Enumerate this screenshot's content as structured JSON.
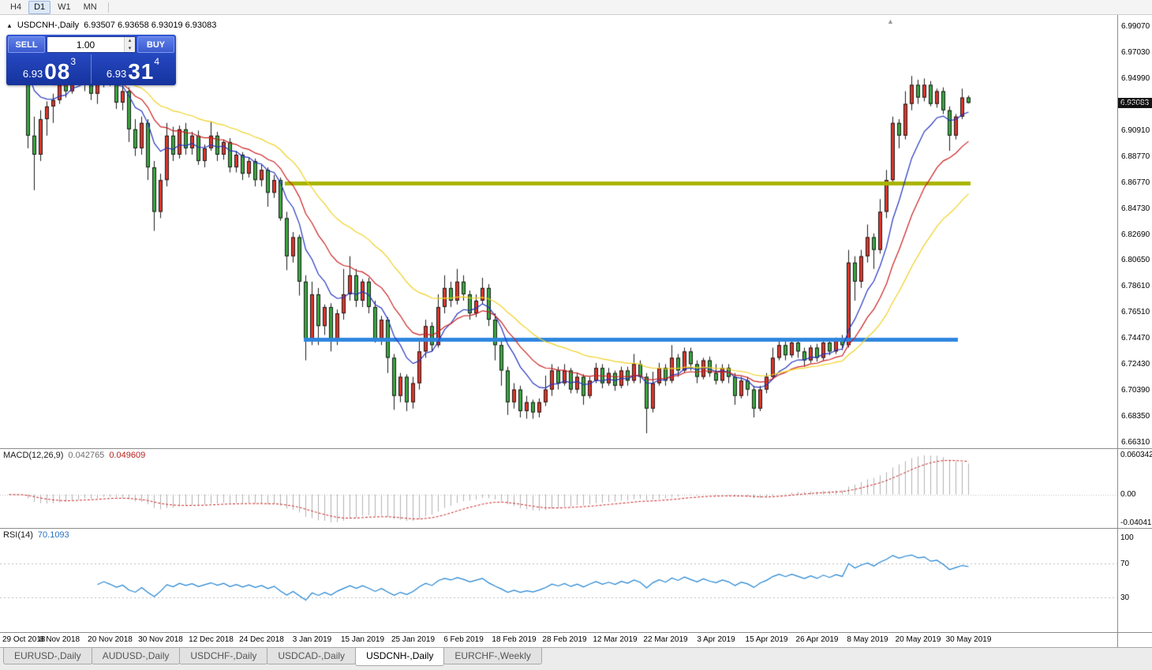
{
  "toolbar": {
    "buttons": [
      {
        "label": "H4",
        "active": false
      },
      {
        "label": "D1",
        "active": true
      },
      {
        "label": "W1",
        "active": false
      },
      {
        "label": "MN",
        "active": false
      }
    ]
  },
  "chart_header": {
    "collapse_icon": "▲",
    "symbol": "USDCNH-,Daily",
    "ohlc": "6.93507 6.93658 6.93019 6.93083"
  },
  "trade_panel": {
    "sell_label": "SELL",
    "buy_label": "BUY",
    "volume": "1.00",
    "spin_up": "▴",
    "spin_down": "▾",
    "sell_price_small": "6.93",
    "sell_price_big": "08",
    "sell_price_sup": "3",
    "buy_price_small": "6.93",
    "buy_price_big": "31",
    "buy_price_sup": "4"
  },
  "shift_marker_icon": "▲",
  "price_axis": {
    "ticks": [
      "6.99070",
      "6.97030",
      "6.94990",
      "6.92950",
      "6.90910",
      "6.88770",
      "6.86770",
      "6.84730",
      "6.82690",
      "6.80650",
      "6.78610",
      "6.76510",
      "6.74470",
      "6.72430",
      "6.70390",
      "6.68350",
      "6.66310"
    ],
    "current_price": "6.93083"
  },
  "date_axis": {
    "labels": [
      "29 Oct 2018",
      "8 Nov 2018",
      "20 Nov 2018",
      "30 Nov 2018",
      "12 Dec 2018",
      "24 Dec 2018",
      "3 Jan 2019",
      "15 Jan 2019",
      "25 Jan 2019",
      "6 Feb 2019",
      "18 Feb 2019",
      "28 Feb 2019",
      "12 Mar 2019",
      "22 Mar 2019",
      "3 Apr 2019",
      "15 Apr 2019",
      "26 Apr 2019",
      "8 May 2019",
      "20 May 2019",
      "30 May 2019"
    ],
    "indices": [
      0,
      8,
      16,
      24,
      32,
      40,
      48,
      56,
      64,
      72,
      80,
      88,
      96,
      104,
      112,
      120,
      128,
      136,
      144,
      152
    ]
  },
  "indicators": {
    "macd": {
      "label": "MACD(12,26,9)",
      "value_main": "0.042765",
      "value_signal": "0.049609",
      "scale": [
        "0.060342",
        "0.00",
        "-0.040415"
      ],
      "histogram_color": "#b0b0b0",
      "signal_color": "#cc2222"
    },
    "rsi": {
      "label": "RSI(14)",
      "value": "70.1093",
      "scale": [
        "100",
        "70",
        "30"
      ],
      "levels": [
        70,
        30
      ],
      "line_color": "#1e82d2"
    }
  },
  "bottom_tabs": {
    "items": [
      {
        "label": "EURUSD-,Daily",
        "active": false
      },
      {
        "label": "AUDUSD-,Daily",
        "active": false
      },
      {
        "label": "USDCHF-,Daily",
        "active": false
      },
      {
        "label": "USDCAD-,Daily",
        "active": false
      },
      {
        "label": "USDCNH-,Daily",
        "active": true
      },
      {
        "label": "EURCHF-,Weekly",
        "active": false
      }
    ]
  },
  "chart_data": {
    "type": "candlestick",
    "title": "USDCNH-,Daily",
    "ylim": [
      6.6631,
      6.9907
    ],
    "colors": {
      "bull": "#e0352b",
      "bear": "#3aa83f",
      "wick": "#1a1a1a"
    },
    "moving_averages": [
      {
        "period": 8,
        "color": "#2434c0"
      },
      {
        "period": 16,
        "color": "#cc2020"
      },
      {
        "period": 30,
        "color": "#f0d020"
      }
    ],
    "hlines": [
      {
        "price": 6.8677,
        "color": "#a8b400",
        "width": 5,
        "from": 44,
        "to": 152
      },
      {
        "price": 6.7447,
        "color": "#2e86e0",
        "width": 5,
        "from": 47,
        "to": 150
      }
    ],
    "candles": [
      [
        6.95,
        6.976,
        6.945,
        6.97
      ],
      [
        6.97,
        6.975,
        6.955,
        6.96
      ],
      [
        6.96,
        6.977,
        6.956,
        6.973
      ],
      [
        6.973,
        6.974,
        6.895,
        6.905
      ],
      [
        6.905,
        6.92,
        6.862,
        6.89
      ],
      [
        6.89,
        6.925,
        6.885,
        6.918
      ],
      [
        6.918,
        6.932,
        6.905,
        6.928
      ],
      [
        6.928,
        6.938,
        6.915,
        6.933
      ],
      [
        6.933,
        6.95,
        6.93,
        6.945
      ],
      [
        6.945,
        6.956,
        6.935,
        6.94
      ],
      [
        6.94,
        6.964,
        6.938,
        6.96
      ],
      [
        6.96,
        6.966,
        6.945,
        6.95
      ],
      [
        6.95,
        6.962,
        6.94,
        6.956
      ],
      [
        6.956,
        6.961,
        6.933,
        6.938
      ],
      [
        6.938,
        6.952,
        6.93,
        6.948
      ],
      [
        6.948,
        6.967,
        6.943,
        6.962
      ],
      [
        6.962,
        6.965,
        6.944,
        6.948
      ],
      [
        6.948,
        6.954,
        6.926,
        6.931
      ],
      [
        6.931,
        6.945,
        6.925,
        6.94
      ],
      [
        6.94,
        6.943,
        6.9,
        6.91
      ],
      [
        6.91,
        6.918,
        6.889,
        6.895
      ],
      [
        6.895,
        6.92,
        6.89,
        6.915
      ],
      [
        6.915,
        6.918,
        6.87,
        6.88
      ],
      [
        6.88,
        6.885,
        6.83,
        6.845
      ],
      [
        6.845,
        6.875,
        6.84,
        6.87
      ],
      [
        6.87,
        6.915,
        6.865,
        6.905
      ],
      [
        6.905,
        6.912,
        6.885,
        6.89
      ],
      [
        6.89,
        6.913,
        6.887,
        6.91
      ],
      [
        6.91,
        6.915,
        6.89,
        6.895
      ],
      [
        6.895,
        6.908,
        6.89,
        6.905
      ],
      [
        6.905,
        6.909,
        6.882,
        6.885
      ],
      [
        6.885,
        6.898,
        6.88,
        6.895
      ],
      [
        6.895,
        6.916,
        6.893,
        6.905
      ],
      [
        6.905,
        6.908,
        6.885,
        6.89
      ],
      [
        6.89,
        6.902,
        6.886,
        6.9
      ],
      [
        6.9,
        6.903,
        6.876,
        6.88
      ],
      [
        6.88,
        6.893,
        6.876,
        6.89
      ],
      [
        6.89,
        6.892,
        6.87,
        6.875
      ],
      [
        6.875,
        6.888,
        6.872,
        6.885
      ],
      [
        6.885,
        6.887,
        6.865,
        6.87
      ],
      [
        6.87,
        6.882,
        6.865,
        6.878
      ],
      [
        6.878,
        6.88,
        6.849,
        6.86
      ],
      [
        6.86,
        6.874,
        6.856,
        6.87
      ],
      [
        6.87,
        6.872,
        6.838,
        6.84
      ],
      [
        6.84,
        6.845,
        6.799,
        6.81
      ],
      [
        6.81,
        6.829,
        6.805,
        6.825
      ],
      [
        6.825,
        6.827,
        6.779,
        6.79
      ],
      [
        6.79,
        6.795,
        6.728,
        6.745
      ],
      [
        6.745,
        6.79,
        6.74,
        6.78
      ],
      [
        6.78,
        6.785,
        6.74,
        6.755
      ],
      [
        6.755,
        6.772,
        6.748,
        6.77
      ],
      [
        6.77,
        6.773,
        6.735,
        6.745
      ],
      [
        6.745,
        6.768,
        6.74,
        6.765
      ],
      [
        6.765,
        6.8,
        6.76,
        6.78
      ],
      [
        6.78,
        6.81,
        6.775,
        6.795
      ],
      [
        6.795,
        6.8,
        6.77,
        6.775
      ],
      [
        6.775,
        6.792,
        6.77,
        6.79
      ],
      [
        6.79,
        6.793,
        6.765,
        6.77
      ],
      [
        6.77,
        6.775,
        6.742,
        6.745
      ],
      [
        6.745,
        6.763,
        6.74,
        6.76
      ],
      [
        6.76,
        6.762,
        6.718,
        6.73
      ],
      [
        6.73,
        6.733,
        6.689,
        6.7
      ],
      [
        6.7,
        6.718,
        6.695,
        6.715
      ],
      [
        6.715,
        6.717,
        6.688,
        6.695
      ],
      [
        6.695,
        6.715,
        6.69,
        6.71
      ],
      [
        6.71,
        6.745,
        6.705,
        6.735
      ],
      [
        6.735,
        6.76,
        6.73,
        6.755
      ],
      [
        6.755,
        6.758,
        6.735,
        6.74
      ],
      [
        6.74,
        6.78,
        6.738,
        6.77
      ],
      [
        6.77,
        6.795,
        6.765,
        6.785
      ],
      [
        6.785,
        6.79,
        6.77,
        6.775
      ],
      [
        6.775,
        6.8,
        6.772,
        6.79
      ],
      [
        6.79,
        6.795,
        6.775,
        6.78
      ],
      [
        6.78,
        6.783,
        6.76,
        6.765
      ],
      [
        6.765,
        6.78,
        6.762,
        6.775
      ],
      [
        6.775,
        6.793,
        6.772,
        6.785
      ],
      [
        6.785,
        6.788,
        6.755,
        6.76
      ],
      [
        6.76,
        6.765,
        6.728,
        6.74
      ],
      [
        6.74,
        6.745,
        6.708,
        6.72
      ],
      [
        6.72,
        6.723,
        6.685,
        6.695
      ],
      [
        6.695,
        6.71,
        6.69,
        6.705
      ],
      [
        6.705,
        6.708,
        6.683,
        6.688
      ],
      [
        6.688,
        6.7,
        6.682,
        6.695
      ],
      [
        6.695,
        6.697,
        6.682,
        6.687
      ],
      [
        6.687,
        6.698,
        6.683,
        6.695
      ],
      [
        6.695,
        6.716,
        6.692,
        6.705
      ],
      [
        6.705,
        6.725,
        6.7,
        6.72
      ],
      [
        6.72,
        6.723,
        6.705,
        6.71
      ],
      [
        6.71,
        6.725,
        6.708,
        6.72
      ],
      [
        6.72,
        6.722,
        6.702,
        6.705
      ],
      [
        6.705,
        6.718,
        6.702,
        6.715
      ],
      [
        6.715,
        6.717,
        6.693,
        6.7
      ],
      [
        6.7,
        6.715,
        6.698,
        6.712
      ],
      [
        6.712,
        6.726,
        6.71,
        6.722
      ],
      [
        6.722,
        6.725,
        6.706,
        6.71
      ],
      [
        6.71,
        6.722,
        6.708,
        6.718
      ],
      [
        6.718,
        6.72,
        6.704,
        6.708
      ],
      [
        6.708,
        6.723,
        6.706,
        6.72
      ],
      [
        6.72,
        6.723,
        6.708,
        6.712
      ],
      [
        6.712,
        6.733,
        6.71,
        6.725
      ],
      [
        6.725,
        6.728,
        6.71,
        6.715
      ],
      [
        6.715,
        6.718,
        6.6705,
        6.69
      ],
      [
        6.69,
        6.719,
        6.687,
        6.71
      ],
      [
        6.71,
        6.726,
        6.708,
        6.722
      ],
      [
        6.722,
        6.725,
        6.708,
        6.712
      ],
      [
        6.712,
        6.74,
        6.71,
        6.73
      ],
      [
        6.73,
        6.733,
        6.715,
        6.72
      ],
      [
        6.72,
        6.738,
        6.718,
        6.735
      ],
      [
        6.735,
        6.738,
        6.72,
        6.725
      ],
      [
        6.725,
        6.728,
        6.71,
        6.715
      ],
      [
        6.715,
        6.73,
        6.713,
        6.728
      ],
      [
        6.728,
        6.731,
        6.715,
        6.718
      ],
      [
        6.718,
        6.725,
        6.709,
        6.712
      ],
      [
        6.712,
        6.725,
        6.71,
        6.722
      ],
      [
        6.722,
        6.725,
        6.71,
        6.715
      ],
      [
        6.715,
        6.718,
        6.693,
        6.7
      ],
      [
        6.7,
        6.715,
        6.698,
        6.712
      ],
      [
        6.712,
        6.715,
        6.7,
        6.705
      ],
      [
        6.705,
        6.708,
        6.683,
        6.69
      ],
      [
        6.69,
        6.708,
        6.688,
        6.705
      ],
      [
        6.705,
        6.718,
        6.702,
        6.715
      ],
      [
        6.715,
        6.738,
        6.713,
        6.73
      ],
      [
        6.73,
        6.745,
        6.728,
        6.74
      ],
      [
        6.74,
        6.743,
        6.728,
        6.732
      ],
      [
        6.732,
        6.745,
        6.73,
        6.742
      ],
      [
        6.742,
        6.745,
        6.73,
        6.735
      ],
      [
        6.735,
        6.738,
        6.723,
        6.728
      ],
      [
        6.728,
        6.74,
        6.726,
        6.738
      ],
      [
        6.738,
        6.741,
        6.727,
        6.73
      ],
      [
        6.73,
        6.744,
        6.728,
        6.742
      ],
      [
        6.742,
        6.745,
        6.732,
        6.735
      ],
      [
        6.735,
        6.746,
        6.733,
        6.745
      ],
      [
        6.745,
        6.748,
        6.736,
        6.74
      ],
      [
        6.74,
        6.815,
        6.738,
        6.805
      ],
      [
        6.805,
        6.81,
        6.775,
        6.79
      ],
      [
        6.79,
        6.815,
        6.785,
        6.81
      ],
      [
        6.81,
        6.835,
        6.805,
        6.825
      ],
      [
        6.825,
        6.828,
        6.8,
        6.815
      ],
      [
        6.815,
        6.855,
        6.812,
        6.845
      ],
      [
        6.845,
        6.878,
        6.84,
        6.87
      ],
      [
        6.87,
        6.92,
        6.868,
        6.915
      ],
      [
        6.915,
        6.918,
        6.895,
        6.905
      ],
      [
        6.905,
        6.94,
        6.902,
        6.93
      ],
      [
        6.93,
        6.952,
        6.925,
        6.945
      ],
      [
        6.945,
        6.949,
        6.93,
        6.935
      ],
      [
        6.935,
        6.95,
        6.932,
        6.945
      ],
      [
        6.945,
        6.948,
        6.928,
        6.93
      ],
      [
        6.93,
        6.942,
        6.927,
        6.94
      ],
      [
        6.94,
        6.943,
        6.922,
        6.925
      ],
      [
        6.925,
        6.928,
        6.893,
        6.905
      ],
      [
        6.905,
        6.922,
        6.902,
        6.92
      ],
      [
        6.92,
        6.942,
        6.918,
        6.935
      ],
      [
        6.93507,
        6.93658,
        6.93019,
        6.93083
      ]
    ]
  }
}
